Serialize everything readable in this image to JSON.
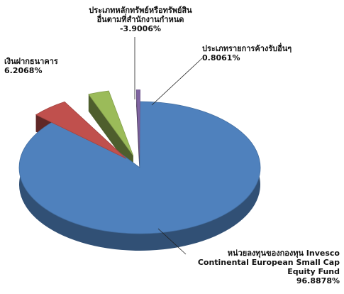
{
  "chart_data": {
    "type": "pie",
    "title": "",
    "slices": [
      {
        "name": "หน่วยลงทุนของกองทุน Invesco Continental European Small Cap Equity Fund",
        "lines": [
          "หน่วยลงทุนของกองทุน Invesco",
          "Continental European Small Cap",
          "Equity Fund"
        ],
        "value": 96.8878,
        "value_label": "96.8878%",
        "color": "#4F81BD"
      },
      {
        "name": "เงินฝากธนาคาร",
        "lines": [
          "เงินฝากธนาคาร"
        ],
        "value": 6.2068,
        "value_label": "6.2068%",
        "color": "#C0504D"
      },
      {
        "name": "ประเภทหลักทรัพย์หรือทรัพย์สินอื่นตามที่สำนักงานกำหนด",
        "lines": [
          "ประเภทหลักทรัพย์หรือทรัพย์สิน",
          "อื่นตามที่สำนักงานกำหนด"
        ],
        "value": -3.9006,
        "value_label": "-3.9006%",
        "color": "#9BBB59"
      },
      {
        "name": "ประเภทรายการค้างรับอื่นๆ",
        "lines": [
          "ประเภทรายการค้างรับอื่นๆ"
        ],
        "value": 0.8061,
        "value_label": "0.8061%",
        "color": "#8064A2"
      }
    ],
    "legend": "none",
    "style": "3d-exploded"
  }
}
